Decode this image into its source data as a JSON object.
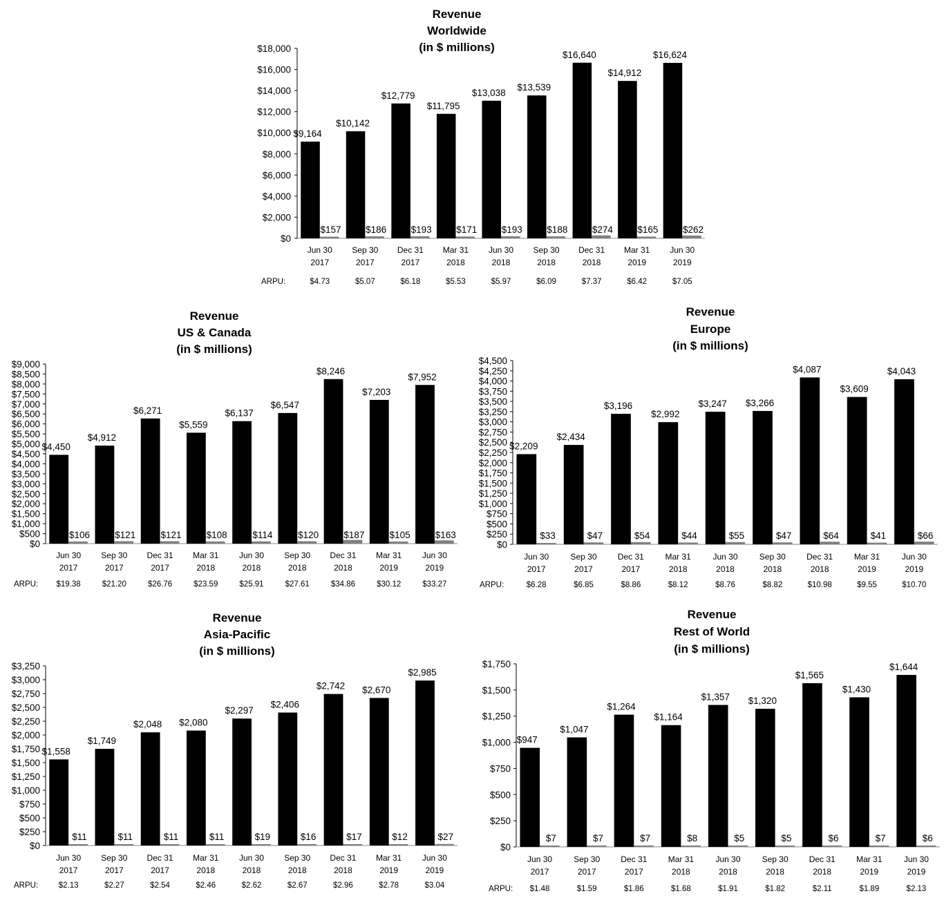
{
  "colors": {
    "revenue_bar": "#000000",
    "arpu_bar": "#7f7f7f",
    "axis": "#000000"
  },
  "chart_data": [
    {
      "id": "worldwide",
      "type": "bar",
      "title": [
        "Revenue",
        "Worldwide",
        "(in $ millions)"
      ],
      "categories": [
        [
          "Jun 30",
          "2017"
        ],
        [
          "Sep 30",
          "2017"
        ],
        [
          "Dec 31",
          "2017"
        ],
        [
          "Mar 31",
          "2018"
        ],
        [
          "Jun 30",
          "2018"
        ],
        [
          "Sep 30",
          "2018"
        ],
        [
          "Dec 31",
          "2018"
        ],
        [
          "Mar 31",
          "2019"
        ],
        [
          "Jun 30",
          "2019"
        ]
      ],
      "series": [
        {
          "values": [
            9164,
            10142,
            12779,
            11795,
            13038,
            13539,
            16640,
            14912,
            16624
          ],
          "labels": [
            "$9,164",
            "$10,142",
            "$12,779",
            "$11,795",
            "$13,038",
            "$13,539",
            "$16,640",
            "$14,912",
            "$16,624"
          ]
        },
        {
          "values": [
            157,
            186,
            193,
            171,
            193,
            188,
            274,
            165,
            262
          ],
          "labels": [
            "$157",
            "$186",
            "$193",
            "$171",
            "$193",
            "$188",
            "$274",
            "$165",
            "$262"
          ]
        }
      ],
      "yticks": [
        "$0",
        "$2,000",
        "$4,000",
        "$6,000",
        "$8,000",
        "$10,000",
        "$12,000",
        "$14,000",
        "$16,000",
        "$18,000"
      ],
      "ylim": [
        0,
        18000
      ],
      "arpu_label": "ARPU:",
      "arpu": [
        "$4.73",
        "$5.07",
        "$6.18",
        "$5.53",
        "$5.97",
        "$6.09",
        "$7.37",
        "$6.42",
        "$7.05"
      ],
      "grid": false
    },
    {
      "id": "us-canada",
      "type": "bar",
      "title": [
        "Revenue",
        "US & Canada",
        "(in $ millions)"
      ],
      "categories": [
        [
          "Jun 30",
          "2017"
        ],
        [
          "Sep 30",
          "2017"
        ],
        [
          "Dec 31",
          "2017"
        ],
        [
          "Mar 31",
          "2018"
        ],
        [
          "Jun 30",
          "2018"
        ],
        [
          "Sep 30",
          "2018"
        ],
        [
          "Dec 31",
          "2018"
        ],
        [
          "Mar 31",
          "2019"
        ],
        [
          "Jun 30",
          "2019"
        ]
      ],
      "series": [
        {
          "values": [
            4450,
            4912,
            6271,
            5559,
            6137,
            6547,
            8246,
            7203,
            7952
          ],
          "labels": [
            "$4,450",
            "$4,912",
            "$6,271",
            "$5,559",
            "$6,137",
            "$6,547",
            "$8,246",
            "$7,203",
            "$7,952"
          ]
        },
        {
          "values": [
            106,
            121,
            121,
            108,
            114,
            120,
            187,
            105,
            163
          ],
          "labels": [
            "$106",
            "$121",
            "$121",
            "$108",
            "$114",
            "$120",
            "$187",
            "$105",
            "$163"
          ]
        }
      ],
      "yticks": [
        "$0",
        "$500",
        "$1,000",
        "$1,500",
        "$2,000",
        "$2,500",
        "$3,000",
        "$3,500",
        "$4,000",
        "$4,500",
        "$5,000",
        "$5,500",
        "$6,000",
        "$6,500",
        "$7,000",
        "$7,500",
        "$8,000",
        "$8,500",
        "$9,000"
      ],
      "ylim": [
        0,
        9000
      ],
      "arpu_label": "ARPU:",
      "arpu": [
        "$19.38",
        "$21.20",
        "$26.76",
        "$23.59",
        "$25.91",
        "$27.61",
        "$34.86",
        "$30.12",
        "$33.27"
      ],
      "grid": false
    },
    {
      "id": "europe",
      "type": "bar",
      "title": [
        "Revenue",
        "Europe",
        "(in $ millions)"
      ],
      "categories": [
        [
          "Jun 30",
          "2017"
        ],
        [
          "Sep 30",
          "2017"
        ],
        [
          "Dec 31",
          "2017"
        ],
        [
          "Mar 31",
          "2018"
        ],
        [
          "Jun 30",
          "2018"
        ],
        [
          "Sep 30",
          "2018"
        ],
        [
          "Dec 31",
          "2018"
        ],
        [
          "Mar 31",
          "2019"
        ],
        [
          "Jun 30",
          "2019"
        ]
      ],
      "series": [
        {
          "values": [
            2209,
            2434,
            3196,
            2992,
            3247,
            3266,
            4087,
            3609,
            4043
          ],
          "labels": [
            "$2,209",
            "$2,434",
            "$3,196",
            "$2,992",
            "$3,247",
            "$3,266",
            "$4,087",
            "$3,609",
            "$4,043"
          ]
        },
        {
          "values": [
            33,
            47,
            54,
            44,
            55,
            47,
            64,
            41,
            66
          ],
          "labels": [
            "$33",
            "$47",
            "$54",
            "$44",
            "$55",
            "$47",
            "$64",
            "$41",
            "$66"
          ]
        }
      ],
      "yticks": [
        "$0",
        "$250",
        "$500",
        "$750",
        "$1,000",
        "$1,250",
        "$1,500",
        "$1,750",
        "$2,000",
        "$2,250",
        "$2,500",
        "$2,750",
        "$3,000",
        "$3,250",
        "$3,500",
        "$3,750",
        "$4,000",
        "$4,250",
        "$4,500"
      ],
      "ylim": [
        0,
        4500
      ],
      "arpu_label": "ARPU:",
      "arpu": [
        "$6.28",
        "$6.85",
        "$8.86",
        "$8.12",
        "$8.76",
        "$8.82",
        "$10.98",
        "$9.55",
        "$10.70"
      ],
      "grid": false
    },
    {
      "id": "asia-pacific",
      "type": "bar",
      "title": [
        "Revenue",
        "Asia-Pacific",
        "(in $ millions)"
      ],
      "categories": [
        [
          "Jun 30",
          "2017"
        ],
        [
          "Sep 30",
          "2017"
        ],
        [
          "Dec 31",
          "2017"
        ],
        [
          "Mar 31",
          "2018"
        ],
        [
          "Jun 30",
          "2018"
        ],
        [
          "Sep 30",
          "2018"
        ],
        [
          "Dec 31",
          "2018"
        ],
        [
          "Mar 31",
          "2019"
        ],
        [
          "Jun 30",
          "2019"
        ]
      ],
      "series": [
        {
          "values": [
            1558,
            1749,
            2048,
            2080,
            2297,
            2406,
            2742,
            2670,
            2985
          ],
          "labels": [
            "$1,558",
            "$1,749",
            "$2,048",
            "$2,080",
            "$2,297",
            "$2,406",
            "$2,742",
            "$2,670",
            "$2,985"
          ]
        },
        {
          "values": [
            11,
            11,
            11,
            11,
            19,
            16,
            17,
            12,
            27
          ],
          "labels": [
            "$11",
            "$11",
            "$11",
            "$11",
            "$19",
            "$16",
            "$17",
            "$12",
            "$27"
          ]
        }
      ],
      "yticks": [
        "$0",
        "$250",
        "$500",
        "$750",
        "$1,000",
        "$1,250",
        "$1,500",
        "$1,750",
        "$2,000",
        "$2,250",
        "$2,500",
        "$2,750",
        "$3,000",
        "$3,250"
      ],
      "ylim": [
        0,
        3250
      ],
      "arpu_label": "ARPU:",
      "arpu": [
        "$2.13",
        "$2.27",
        "$2.54",
        "$2.46",
        "$2.62",
        "$2.67",
        "$2.96",
        "$2.78",
        "$3.04"
      ],
      "grid": false
    },
    {
      "id": "rest-of-world",
      "type": "bar",
      "title": [
        "Revenue",
        "Rest of World",
        "(in $ millions)"
      ],
      "categories": [
        [
          "Jun 30",
          "2017"
        ],
        [
          "Sep 30",
          "2017"
        ],
        [
          "Dec 31",
          "2017"
        ],
        [
          "Mar 31",
          "2018"
        ],
        [
          "Jun 30",
          "2018"
        ],
        [
          "Sep 30",
          "2018"
        ],
        [
          "Dec 31",
          "2018"
        ],
        [
          "Mar 31",
          "2019"
        ],
        [
          "Jun 30",
          "2019"
        ]
      ],
      "series": [
        {
          "values": [
            947,
            1047,
            1264,
            1164,
            1357,
            1320,
            1565,
            1430,
            1644
          ],
          "labels": [
            "$947",
            "$1,047",
            "$1,264",
            "$1,164",
            "$1,357",
            "$1,320",
            "$1,565",
            "$1,430",
            "$1,644"
          ]
        },
        {
          "values": [
            7,
            7,
            7,
            8,
            5,
            5,
            6,
            7,
            6
          ],
          "labels": [
            "$7",
            "$7",
            "$7",
            "$8",
            "$5",
            "$5",
            "$6",
            "$7",
            "$6"
          ]
        }
      ],
      "yticks": [
        "$0",
        "$250",
        "$500",
        "$750",
        "$1,000",
        "$1,250",
        "$1,500",
        "$1,750"
      ],
      "ylim": [
        0,
        1750
      ],
      "arpu_label": "ARPU:",
      "arpu": [
        "$1.48",
        "$1.59",
        "$1.86",
        "$1.68",
        "$1.91",
        "$1.82",
        "$2.11",
        "$1.89",
        "$2.13"
      ],
      "grid": false
    }
  ]
}
